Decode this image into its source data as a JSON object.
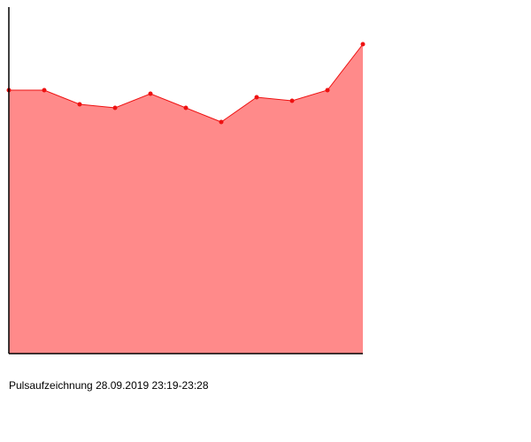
{
  "caption": "Pulsaufzeichnung 28.09.2019 23:19-23:28",
  "chart_data": {
    "type": "area",
    "x": [
      0,
      1,
      2,
      3,
      4,
      5,
      6,
      7,
      8,
      9,
      10
    ],
    "values": [
      74.5,
      74.5,
      70.5,
      69.5,
      73.5,
      69.5,
      65.5,
      72.5,
      71.5,
      74.5,
      87.5
    ],
    "ylim": [
      0,
      100
    ],
    "grid": false,
    "title": "",
    "xlabel": "",
    "ylabel": "",
    "colors": {
      "fill": "#ff8a8a",
      "line": "#ee1111",
      "point": "#ee1111",
      "axis": "#000000"
    }
  }
}
